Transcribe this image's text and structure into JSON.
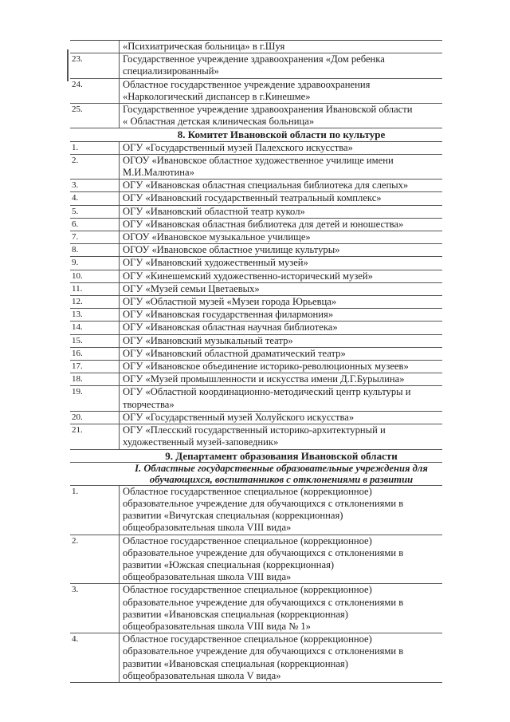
{
  "rows": [
    {
      "type": "item",
      "num": "",
      "lines": [
        "«Психиатрическая больница» в г.Шуя"
      ]
    },
    {
      "type": "item",
      "num": "23.",
      "lines": [
        "Государственное учреждение здравоохранения  «Дом ребенка",
        "специализированный»"
      ]
    },
    {
      "type": "item",
      "num": "24.",
      "lines": [
        "Областное государственное учреждение здравоохранения",
        "«Наркологический диспансер в г.Кинешме»"
      ]
    },
    {
      "type": "item",
      "num": "25.",
      "lines": [
        "Государственное учреждение здравоохранения Ивановской области",
        "« Областная детская клиническая больница»"
      ]
    },
    {
      "type": "head",
      "num": "",
      "lines": [
        "8. Комитет Ивановской области по культуре"
      ]
    },
    {
      "type": "item",
      "num": "1.",
      "lines": [
        "ОГУ «Государственный музей Палехского искусства»"
      ]
    },
    {
      "type": "item",
      "num": "2.",
      "lines": [
        "ОГОУ «Ивановское областное художественное училище имени",
        "М.И.Малютина»"
      ]
    },
    {
      "type": "item",
      "num": "3.",
      "lines": [
        "ОГУ «Ивановская областная специальная библиотека для слепых»"
      ]
    },
    {
      "type": "item",
      "num": "4.",
      "lines": [
        "ОГУ «Ивановский государственный театральный комплекс»"
      ]
    },
    {
      "type": "item",
      "num": "5.",
      "lines": [
        "ОГУ «Ивановский областной театр кукол»"
      ]
    },
    {
      "type": "item",
      "num": "6.",
      "lines": [
        "ОГУ «Ивановская областная библиотека для детей и юношества»"
      ]
    },
    {
      "type": "item",
      "num": "7.",
      "lines": [
        "ОГОУ «Ивановское  музыкальное училище»"
      ]
    },
    {
      "type": "item",
      "num": "8.",
      "lines": [
        "ОГОУ «Ивановское областное училище культуры»"
      ]
    },
    {
      "type": "item",
      "num": "9.",
      "lines": [
        "ОГУ «Ивановский художественный музей»"
      ]
    },
    {
      "type": "item",
      "num": "10.",
      "lines": [
        "ОГУ «Кинешемский художественно-исторический музей»"
      ]
    },
    {
      "type": "item",
      "num": "11.",
      "lines": [
        "ОГУ «Музей семьи Цветаевых»"
      ]
    },
    {
      "type": "item",
      "num": "12.",
      "lines": [
        "ОГУ «Областной музей «Музеи города Юрьевца»"
      ]
    },
    {
      "type": "item",
      "num": "13.",
      "lines": [
        "ОГУ «Ивановская государственная филармония»"
      ]
    },
    {
      "type": "item",
      "num": "14.",
      "lines": [
        "ОГУ «Ивановская областная научная библиотека»"
      ]
    },
    {
      "type": "item",
      "num": "15.",
      "lines": [
        "ОГУ «Ивановский музыкальный театр»"
      ]
    },
    {
      "type": "item",
      "num": "16.",
      "lines": [
        "ОГУ «Ивановский областной драматический театр»"
      ]
    },
    {
      "type": "item",
      "num": "17.",
      "lines": [
        "ОГУ «Ивановское объединение историко-революционных музеев»"
      ]
    },
    {
      "type": "item",
      "num": "18.",
      "lines": [
        "ОГУ «Музей промышленности и искусства имени Д.Г.Бурылина»"
      ]
    },
    {
      "type": "item",
      "num": "19.",
      "lines": [
        "ОГУ «Областной координационно-методический центр культуры и",
        "творчества»"
      ]
    },
    {
      "type": "item",
      "num": "20.",
      "lines": [
        "ОГУ «Государственный музей Холуйского искусства»"
      ]
    },
    {
      "type": "item",
      "num": "21.",
      "lines": [
        "ОГУ «Плесский государственный историко-архитектурный и",
        "художественный музей-заповедник»"
      ]
    },
    {
      "type": "head",
      "num": "",
      "lines": [
        "9. Департамент образования Ивановской области"
      ]
    },
    {
      "type": "sub",
      "num": "",
      "lines": [
        "I. Областные государственные образовательные учреждения для",
        "обучающихся, воспитанников с отклонениями в развитии"
      ]
    },
    {
      "type": "big",
      "num": "1.",
      "lines": [
        " Областное государственное специальное (коррекционное)",
        "образовательное учреждение для обучающихся с отклонениями в",
        "развитии «Вичугская специальная (коррекционная)",
        "общеобразовательная школа VIII вида»"
      ]
    },
    {
      "type": "big",
      "num": "2.",
      "lines": [
        "Областное государственное специальное (коррекционное)",
        "образовательное учреждение для обучающихся с отклонениями в",
        "развитии «Южская специальная (коррекционная)",
        "общеобразовательная школа VIII вида»"
      ]
    },
    {
      "type": "big",
      "num": "3.",
      "lines": [
        "Областное государственное специальное (коррекционное)",
        "образовательное учреждение для обучающихся с отклонениями в",
        "развитии «Ивановская специальная (коррекционная)",
        "общеобразовательная школа VIII вида № 1»"
      ]
    },
    {
      "type": "big",
      "num": "4.",
      "lines": [
        "Областное государственное специальное (коррекционное)",
        "образовательное учреждение для обучающихся с отклонениями в",
        "развитии «Ивановская специальная (коррекционная)",
        "общеобразовательная школа V вида»"
      ]
    }
  ]
}
